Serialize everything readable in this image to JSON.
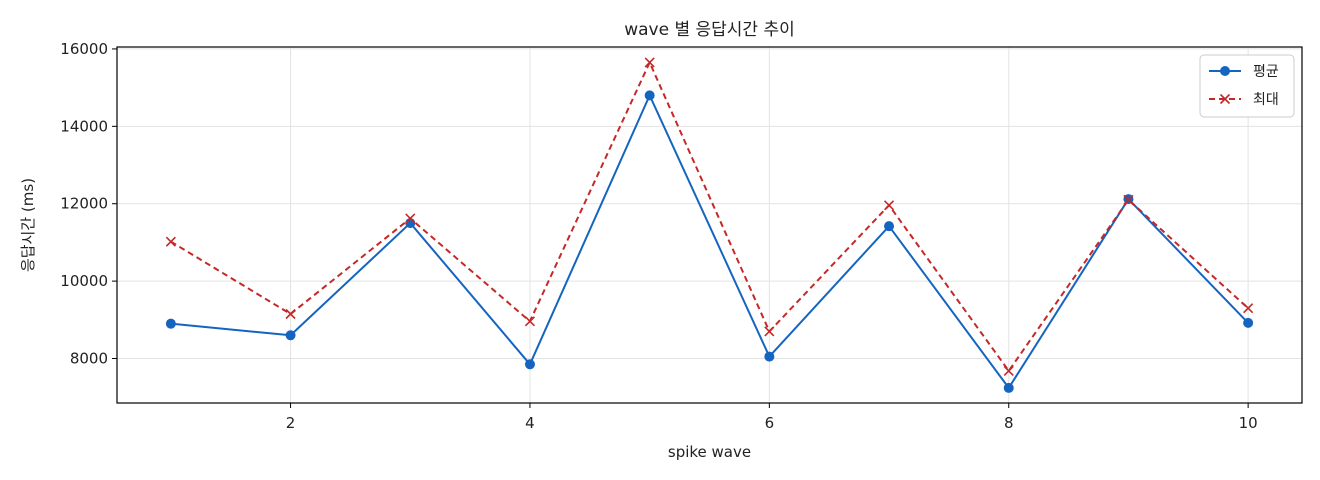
{
  "chart_data": {
    "type": "line",
    "title": "wave 별 응답시간 추이",
    "xlabel": "spike wave",
    "ylabel": "응답시간 (ms)",
    "x": [
      1,
      2,
      3,
      4,
      5,
      6,
      7,
      8,
      9,
      10
    ],
    "xlim": [
      0.55,
      10.45
    ],
    "ylim": [
      6850,
      16050
    ],
    "xticks": [
      2,
      4,
      6,
      8,
      10
    ],
    "yticks": [
      8000,
      10000,
      12000,
      14000,
      16000
    ],
    "grid": true,
    "legend_position": "top-right",
    "series": [
      {
        "name": "평균",
        "color": "#1565c0",
        "marker": "circle",
        "line_style": "solid",
        "values": [
          8900,
          8600,
          11500,
          7850,
          14800,
          8050,
          11420,
          7240,
          12120,
          8920
        ]
      },
      {
        "name": "최대",
        "color": "#c62828",
        "marker": "x",
        "line_style": "dashed",
        "values": [
          11020,
          9150,
          11620,
          8960,
          15650,
          8700,
          11960,
          7680,
          12100,
          9300
        ]
      }
    ]
  }
}
